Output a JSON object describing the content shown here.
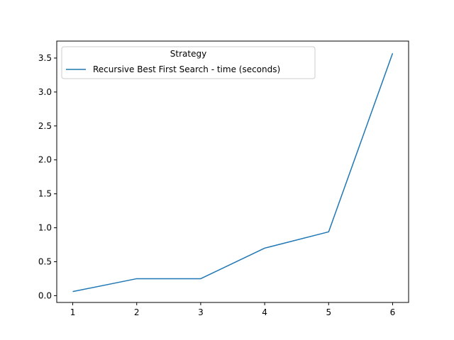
{
  "chart_data": {
    "type": "line",
    "x": [
      1,
      2,
      3,
      4,
      5,
      6
    ],
    "xticks": [
      "1",
      "2",
      "3",
      "4",
      "5",
      "6"
    ],
    "yticks": [
      "0.0",
      "0.5",
      "1.0",
      "1.5",
      "2.0",
      "2.5",
      "3.0",
      "3.5"
    ],
    "xlim": [
      0.75,
      6.25
    ],
    "ylim": [
      -0.1,
      3.75
    ],
    "series": [
      {
        "name": "Recursive Best First Search - time (seconds)",
        "values": [
          0.06,
          0.25,
          0.25,
          0.7,
          0.94,
          3.57
        ],
        "color": "#1f77b4"
      }
    ],
    "legend": {
      "title": "Strategy",
      "position": "top-left"
    },
    "grid": false
  }
}
